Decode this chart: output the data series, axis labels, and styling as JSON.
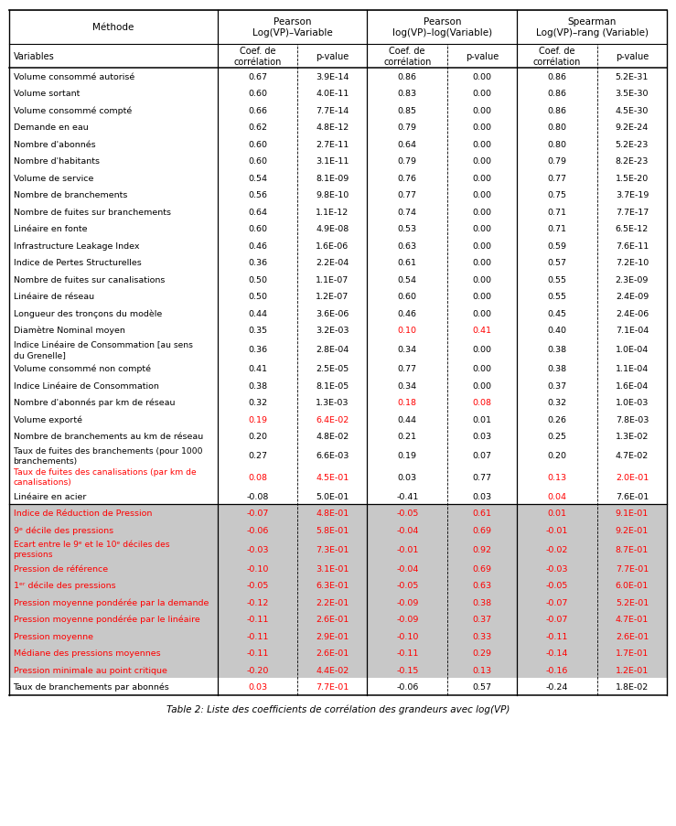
{
  "title": "Table 2: Liste des coefficients de corrélation des grandeurs avec log(VP)",
  "col_labels": [
    "Variables",
    "Coef. de\ncorrélation",
    "p-value",
    "Coef. de\ncorrélation",
    "p-value",
    "Coef. de\ncorrélation",
    "p-value"
  ],
  "rows": [
    {
      "label": "Volume consommé autorisé",
      "vals": [
        "0.67",
        "3.9E-14",
        "0.86",
        "0.00",
        "0.86",
        "5.2E-31"
      ],
      "bg": "white",
      "red_cols": [],
      "label_red": false
    },
    {
      "label": "Volume sortant",
      "vals": [
        "0.60",
        "4.0E-11",
        "0.83",
        "0.00",
        "0.86",
        "3.5E-30"
      ],
      "bg": "white",
      "red_cols": [],
      "label_red": false
    },
    {
      "label": "Volume consommé compté",
      "vals": [
        "0.66",
        "7.7E-14",
        "0.85",
        "0.00",
        "0.86",
        "4.5E-30"
      ],
      "bg": "white",
      "red_cols": [],
      "label_red": false
    },
    {
      "label": "Demande en eau",
      "vals": [
        "0.62",
        "4.8E-12",
        "0.79",
        "0.00",
        "0.80",
        "9.2E-24"
      ],
      "bg": "white",
      "red_cols": [],
      "label_red": false
    },
    {
      "label": "Nombre d'abonnés",
      "vals": [
        "0.60",
        "2.7E-11",
        "0.64",
        "0.00",
        "0.80",
        "5.2E-23"
      ],
      "bg": "white",
      "red_cols": [],
      "label_red": false
    },
    {
      "label": "Nombre d'habitants",
      "vals": [
        "0.60",
        "3.1E-11",
        "0.79",
        "0.00",
        "0.79",
        "8.2E-23"
      ],
      "bg": "white",
      "red_cols": [],
      "label_red": false
    },
    {
      "label": "Volume de service",
      "vals": [
        "0.54",
        "8.1E-09",
        "0.76",
        "0.00",
        "0.77",
        "1.5E-20"
      ],
      "bg": "white",
      "red_cols": [],
      "label_red": false
    },
    {
      "label": "Nombre de branchements",
      "vals": [
        "0.56",
        "9.8E-10",
        "0.77",
        "0.00",
        "0.75",
        "3.7E-19"
      ],
      "bg": "white",
      "red_cols": [],
      "label_red": false
    },
    {
      "label": "Nombre de fuites sur branchements",
      "vals": [
        "0.64",
        "1.1E-12",
        "0.74",
        "0.00",
        "0.71",
        "7.7E-17"
      ],
      "bg": "white",
      "red_cols": [],
      "label_red": false
    },
    {
      "label": "Linéaire en fonte",
      "vals": [
        "0.60",
        "4.9E-08",
        "0.53",
        "0.00",
        "0.71",
        "6.5E-12"
      ],
      "bg": "white",
      "red_cols": [],
      "label_red": false
    },
    {
      "label": "Infrastructure Leakage Index",
      "vals": [
        "0.46",
        "1.6E-06",
        "0.63",
        "0.00",
        "0.59",
        "7.6E-11"
      ],
      "bg": "white",
      "red_cols": [],
      "label_red": false
    },
    {
      "label": "Indice de Pertes Structurelles",
      "vals": [
        "0.36",
        "2.2E-04",
        "0.61",
        "0.00",
        "0.57",
        "7.2E-10"
      ],
      "bg": "white",
      "red_cols": [],
      "label_red": false
    },
    {
      "label": "Nombre de fuites sur canalisations",
      "vals": [
        "0.50",
        "1.1E-07",
        "0.54",
        "0.00",
        "0.55",
        "2.3E-09"
      ],
      "bg": "white",
      "red_cols": [],
      "label_red": false
    },
    {
      "label": "Linéaire de réseau",
      "vals": [
        "0.50",
        "1.2E-07",
        "0.60",
        "0.00",
        "0.55",
        "2.4E-09"
      ],
      "bg": "white",
      "red_cols": [],
      "label_red": false
    },
    {
      "label": "Longueur des tronçons du modèle",
      "vals": [
        "0.44",
        "3.6E-06",
        "0.46",
        "0.00",
        "0.45",
        "2.4E-06"
      ],
      "bg": "white",
      "red_cols": [],
      "label_red": false
    },
    {
      "label": "Diamètre Nominal moyen",
      "vals": [
        "0.35",
        "3.2E-03",
        "0.10",
        "0.41",
        "0.40",
        "7.1E-04"
      ],
      "bg": "white",
      "red_cols": [
        2,
        3
      ],
      "label_red": false
    },
    {
      "label": "Indice Linéaire de Consommation [au sens\ndu Grenelle]",
      "vals": [
        "0.36",
        "2.8E-04",
        "0.34",
        "0.00",
        "0.38",
        "1.0E-04"
      ],
      "bg": "white",
      "red_cols": [],
      "label_red": false
    },
    {
      "label": "Volume consommé non compté",
      "vals": [
        "0.41",
        "2.5E-05",
        "0.77",
        "0.00",
        "0.38",
        "1.1E-04"
      ],
      "bg": "white",
      "red_cols": [],
      "label_red": false
    },
    {
      "label": "Indice Linéaire de Consommation",
      "vals": [
        "0.38",
        "8.1E-05",
        "0.34",
        "0.00",
        "0.37",
        "1.6E-04"
      ],
      "bg": "white",
      "red_cols": [],
      "label_red": false
    },
    {
      "label": "Nombre d'abonnés par km de réseau",
      "vals": [
        "0.32",
        "1.3E-03",
        "0.18",
        "0.08",
        "0.32",
        "1.0E-03"
      ],
      "bg": "white",
      "red_cols": [
        2,
        3
      ],
      "label_red": false
    },
    {
      "label": "Volume exporté",
      "vals": [
        "0.19",
        "6.4E-02",
        "0.44",
        "0.01",
        "0.26",
        "7.8E-03"
      ],
      "bg": "white",
      "red_cols": [
        0,
        1
      ],
      "label_red": false
    },
    {
      "label": "Nombre de branchements au km de réseau",
      "vals": [
        "0.20",
        "4.8E-02",
        "0.21",
        "0.03",
        "0.25",
        "1.3E-02"
      ],
      "bg": "white",
      "red_cols": [],
      "label_red": false
    },
    {
      "label": "Taux de fuites des branchements (pour 1000\nbranchements)",
      "vals": [
        "0.27",
        "6.6E-03",
        "0.19",
        "0.07",
        "0.20",
        "4.7E-02"
      ],
      "bg": "white",
      "red_cols": [],
      "label_red": false
    },
    {
      "label": "Taux de fuites des canalisations (par km de\ncanalisations)",
      "vals": [
        "0.08",
        "4.5E-01",
        "0.03",
        "0.77",
        "0.13",
        "2.0E-01"
      ],
      "bg": "white",
      "red_cols": [
        0,
        1,
        4,
        5
      ],
      "label_red": true
    },
    {
      "label": "Linéaire en acier",
      "vals": [
        "-0.08",
        "5.0E-01",
        "-0.41",
        "0.03",
        "0.04",
        "7.6E-01"
      ],
      "bg": "white",
      "red_cols": [
        4
      ],
      "label_red": false
    },
    {
      "label": "Indice de Réduction de Pression",
      "vals": [
        "-0.07",
        "4.8E-01",
        "-0.05",
        "0.61",
        "0.01",
        "9.1E-01"
      ],
      "bg": "gray",
      "red_cols": [
        0,
        1,
        2,
        3,
        4,
        5
      ],
      "label_red": true
    },
    {
      "label": "9ᵉ décile des pressions",
      "vals": [
        "-0.06",
        "5.8E-01",
        "-0.04",
        "0.69",
        "-0.01",
        "9.2E-01"
      ],
      "bg": "gray",
      "red_cols": [
        0,
        1,
        2,
        3,
        4,
        5
      ],
      "label_red": true
    },
    {
      "label": "Ecart entre le 9ᵉ et le 10ᵉ déciles des\npressions",
      "vals": [
        "-0.03",
        "7.3E-01",
        "-0.01",
        "0.92",
        "-0.02",
        "8.7E-01"
      ],
      "bg": "gray",
      "red_cols": [
        0,
        1,
        2,
        3,
        4,
        5
      ],
      "label_red": true
    },
    {
      "label": "Pression de référence",
      "vals": [
        "-0.10",
        "3.1E-01",
        "-0.04",
        "0.69",
        "-0.03",
        "7.7E-01"
      ],
      "bg": "gray",
      "red_cols": [
        0,
        1,
        2,
        3,
        4,
        5
      ],
      "label_red": true
    },
    {
      "label": "1ᵉʳ décile des pressions",
      "vals": [
        "-0.05",
        "6.3E-01",
        "-0.05",
        "0.63",
        "-0.05",
        "6.0E-01"
      ],
      "bg": "gray",
      "red_cols": [
        0,
        1,
        2,
        3,
        4,
        5
      ],
      "label_red": true
    },
    {
      "label": "Pression moyenne pondérée par la demande",
      "vals": [
        "-0.12",
        "2.2E-01",
        "-0.09",
        "0.38",
        "-0.07",
        "5.2E-01"
      ],
      "bg": "gray",
      "red_cols": [
        0,
        1,
        2,
        3,
        4,
        5
      ],
      "label_red": true
    },
    {
      "label": "Pression moyenne pondérée par le linéaire",
      "vals": [
        "-0.11",
        "2.6E-01",
        "-0.09",
        "0.37",
        "-0.07",
        "4.7E-01"
      ],
      "bg": "gray",
      "red_cols": [
        0,
        1,
        2,
        3,
        4,
        5
      ],
      "label_red": true
    },
    {
      "label": "Pression moyenne",
      "vals": [
        "-0.11",
        "2.9E-01",
        "-0.10",
        "0.33",
        "-0.11",
        "2.6E-01"
      ],
      "bg": "gray",
      "red_cols": [
        0,
        1,
        2,
        3,
        4,
        5
      ],
      "label_red": true
    },
    {
      "label": "Médiane des pressions moyennes",
      "vals": [
        "-0.11",
        "2.6E-01",
        "-0.11",
        "0.29",
        "-0.14",
        "1.7E-01"
      ],
      "bg": "gray",
      "red_cols": [
        0,
        1,
        2,
        3,
        4,
        5
      ],
      "label_red": true
    },
    {
      "label": "Pression minimale au point critique",
      "vals": [
        "-0.20",
        "4.4E-02",
        "-0.15",
        "0.13",
        "-0.16",
        "1.2E-01"
      ],
      "bg": "gray",
      "red_cols": [
        0,
        1,
        2,
        3,
        4,
        5
      ],
      "label_red": true
    },
    {
      "label": "Taux de branchements par abonnés",
      "vals": [
        "0.03",
        "7.7E-01",
        "-0.06",
        "0.57",
        "-0.24",
        "1.8E-02"
      ],
      "bg": "white",
      "red_cols": [
        0,
        1
      ],
      "label_red": false
    }
  ],
  "red_color": "#FF0000",
  "gray_bg_color": "#C8C8C8",
  "white_bg": "#FFFFFF"
}
